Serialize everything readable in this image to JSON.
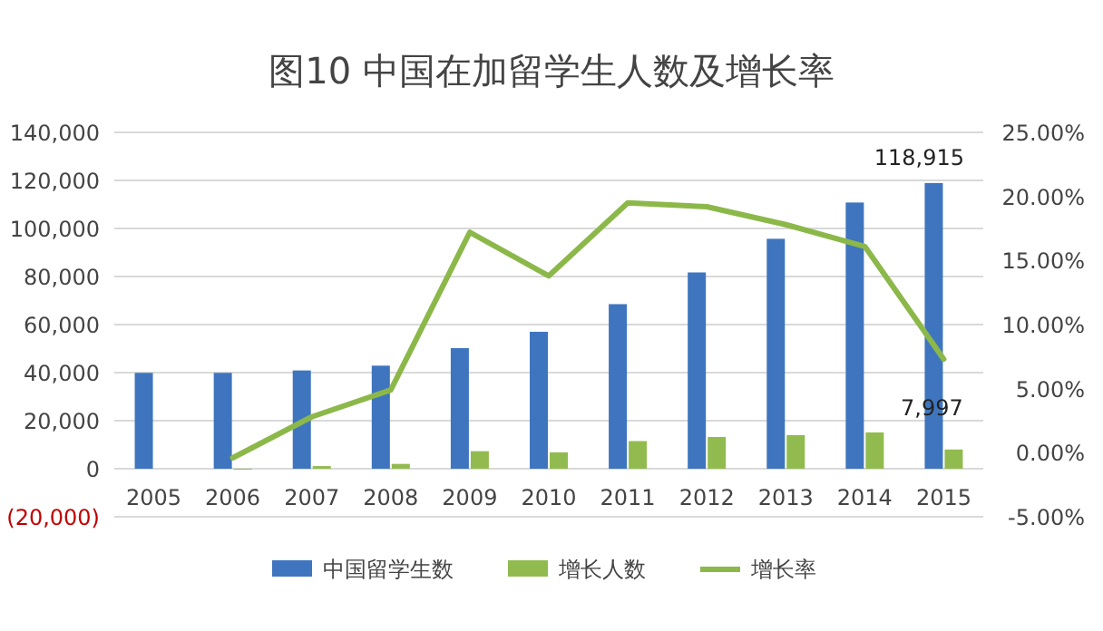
{
  "chart_data": {
    "type": "bar",
    "title": "图10  中国在加留学生人数及增长率",
    "categories": [
      "2005",
      "2006",
      "2007",
      "2008",
      "2009",
      "2010",
      "2011",
      "2012",
      "2013",
      "2014",
      "2015"
    ],
    "series": [
      {
        "name": "中国留学生数",
        "color": "#3f75be",
        "values": [
          39900,
          39900,
          40900,
          42900,
          50200,
          57000,
          68500,
          81700,
          95700,
          110800,
          118915
        ],
        "value_labels": [
          null,
          null,
          null,
          null,
          null,
          null,
          null,
          null,
          null,
          null,
          "118,915"
        ]
      },
      {
        "name": "增长人数",
        "color": "#92bb4f",
        "values": [
          null,
          -200,
          1100,
          2000,
          7300,
          6800,
          11500,
          13200,
          14000,
          15100,
          7997
        ],
        "value_labels": [
          null,
          null,
          null,
          null,
          null,
          null,
          null,
          null,
          null,
          null,
          "7,997"
        ]
      },
      {
        "name": "增长率",
        "type": "line",
        "axis": "y2",
        "color": "#8cb84a",
        "values": [
          null,
          -0.4,
          2.8,
          4.9,
          17.2,
          13.8,
          19.5,
          19.2,
          17.8,
          16.1,
          7.3
        ]
      }
    ],
    "ylim": [
      -20000,
      140000
    ],
    "yticks": [
      {
        "value": -20000,
        "label": "(20,000)"
      },
      {
        "value": 0,
        "label": "0"
      },
      {
        "value": 20000,
        "label": "20,000"
      },
      {
        "value": 40000,
        "label": "40,000"
      },
      {
        "value": 60000,
        "label": "60,000"
      },
      {
        "value": 80000,
        "label": "80,000"
      },
      {
        "value": 100000,
        "label": "100,000"
      },
      {
        "value": 120000,
        "label": "120,000"
      },
      {
        "value": 140000,
        "label": "140,000"
      }
    ],
    "y2lim": [
      -5,
      25
    ],
    "y2ticks": [
      {
        "value": -5,
        "label": "-5.00%"
      },
      {
        "value": 0,
        "label": "0.00%"
      },
      {
        "value": 5,
        "label": "5.00%"
      },
      {
        "value": 10,
        "label": "10.00%"
      },
      {
        "value": 15,
        "label": "15.00%"
      },
      {
        "value": 20,
        "label": "20.00%"
      },
      {
        "value": 25,
        "label": "25.00%"
      }
    ],
    "grid": "y",
    "legend": "bottom"
  }
}
